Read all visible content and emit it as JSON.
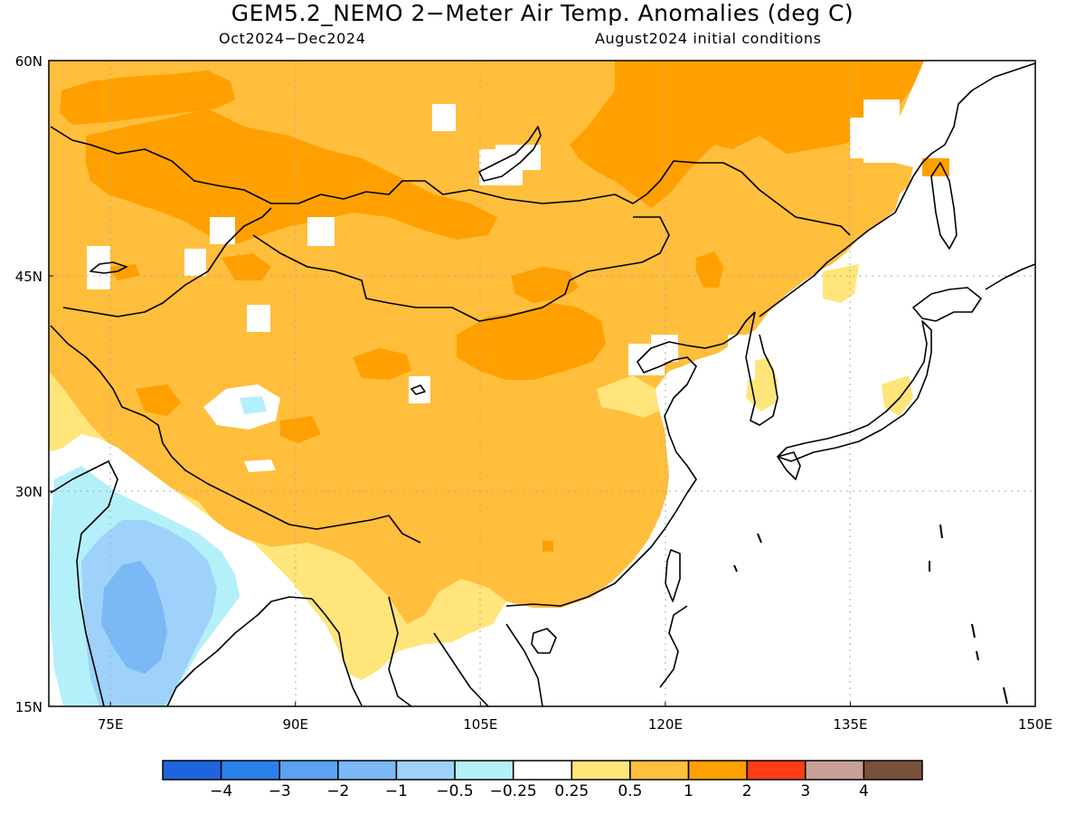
{
  "title": "GEM5.2_NEMO 2−Meter Air Temp. Anomalies (deg C)",
  "subtitle_left": "Oct2024−Dec2024",
  "subtitle_right": "August2024 initial conditions",
  "map": {
    "projection": "equirectangular",
    "lon_range": [
      70,
      150
    ],
    "lat_range": [
      15,
      60
    ],
    "lon_ticks": [
      "75E",
      "90E",
      "105E",
      "120E",
      "135E",
      "150E"
    ],
    "lat_ticks": [
      "60N",
      "45N",
      "30N",
      "15N"
    ],
    "gridlines": "dotted",
    "ocean_color": "#ffffff",
    "coastline_color": "#000000"
  },
  "colorbar": {
    "labels": [
      "−4",
      "−3",
      "−2",
      "−1",
      "−0.5",
      "−0.25",
      "0.25",
      "0.5",
      "1",
      "2",
      "3",
      "4"
    ],
    "colors": [
      "#1e64dc",
      "#2b80ea",
      "#5aa2f2",
      "#7ab8f6",
      "#9ed2fa",
      "#b4f0fa",
      "#ffffff",
      "#ffe57a",
      "#ffbe3c",
      "#ffa000",
      "#ff3c14",
      "#c8a096",
      "#78503c"
    ]
  },
  "regions": [
    {
      "name": "anomaly-0.5-1",
      "color": "#ffbe3c"
    },
    {
      "name": "anomaly-1-2",
      "color": "#ffa000"
    },
    {
      "name": "anomaly-0.25-0.5",
      "color": "#ffe57a"
    },
    {
      "name": "anomaly-neg-0.25-0.5",
      "color": "#b4f0fa"
    },
    {
      "name": "anomaly-neg-0.5-1",
      "color": "#9ed2fa"
    },
    {
      "name": "anomaly-neg-1-2",
      "color": "#7ab8f6"
    }
  ]
}
